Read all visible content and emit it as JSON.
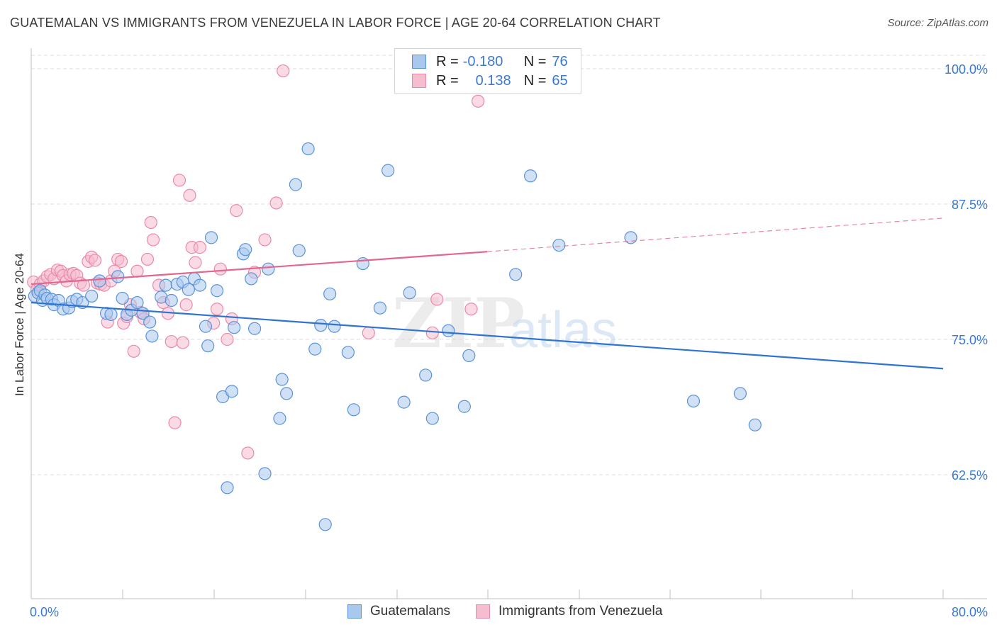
{
  "title": "GUATEMALAN VS IMMIGRANTS FROM VENEZUELA IN LABOR FORCE | AGE 20-64 CORRELATION CHART",
  "source": "Source: ZipAtlas.com",
  "legend": {
    "r_label": "R =",
    "n_label": "N =",
    "rows": [
      {
        "r": "-0.180",
        "n": "76"
      },
      {
        "r": "0.138",
        "n": "65"
      }
    ]
  },
  "watermark": {
    "zip": "ZIP",
    "atlas": "atlas"
  },
  "colors": {
    "blue_fill": "#aac8ee",
    "blue_stroke": "#5b93d8",
    "blue_line": "#2e74d0",
    "pink_fill": "#f6bccf",
    "pink_stroke": "#e98aaa",
    "pink_line": "#e2668f",
    "axis_label": "#3a78d6",
    "grid": "#dcdcdc"
  },
  "chart_data": {
    "type": "scatter",
    "xlabel": "",
    "ylabel": "In Labor Force | Age 20-64",
    "xlim": [
      0,
      80
    ],
    "ylim": [
      50.5,
      102
    ],
    "x_tick_labels": [
      "0.0%",
      "80.0%"
    ],
    "y_ticks": [
      {
        "value": 100.0,
        "label": "100.0%"
      },
      {
        "value": 87.5,
        "label": "87.5%"
      },
      {
        "value": 75.0,
        "label": "75.0%"
      },
      {
        "value": 62.5,
        "label": "62.5%"
      }
    ],
    "grid": true,
    "legend_position": "top-center",
    "series": [
      {
        "name": "Guatemalans",
        "color": "#5b93d8",
        "points": [
          [
            0.3,
            79.0
          ],
          [
            0.6,
            79.3
          ],
          [
            0.8,
            79.5
          ],
          [
            1.0,
            78.6
          ],
          [
            1.2,
            79.1
          ],
          [
            1.4,
            78.8
          ],
          [
            1.8,
            78.7
          ],
          [
            2.0,
            78.2
          ],
          [
            2.4,
            78.6
          ],
          [
            2.8,
            77.8
          ],
          [
            3.3,
            77.9
          ],
          [
            3.6,
            78.5
          ],
          [
            4.0,
            78.7
          ],
          [
            4.5,
            78.4
          ],
          [
            5.3,
            79.0
          ],
          [
            6.0,
            80.4
          ],
          [
            6.6,
            77.4
          ],
          [
            7.0,
            77.3
          ],
          [
            7.6,
            80.8
          ],
          [
            8.0,
            78.8
          ],
          [
            8.4,
            77.3
          ],
          [
            8.8,
            77.7
          ],
          [
            9.3,
            78.4
          ],
          [
            9.8,
            77.4
          ],
          [
            10.4,
            76.6
          ],
          [
            10.6,
            75.3
          ],
          [
            11.4,
            78.9
          ],
          [
            11.8,
            80.0
          ],
          [
            12.3,
            78.6
          ],
          [
            12.8,
            80.1
          ],
          [
            13.3,
            80.3
          ],
          [
            13.8,
            79.6
          ],
          [
            14.3,
            80.6
          ],
          [
            14.8,
            80.0
          ],
          [
            15.3,
            76.2
          ],
          [
            15.5,
            74.4
          ],
          [
            15.8,
            84.4
          ],
          [
            16.3,
            79.5
          ],
          [
            16.8,
            69.7
          ],
          [
            17.2,
            61.3
          ],
          [
            17.6,
            70.2
          ],
          [
            17.8,
            76.1
          ],
          [
            18.6,
            82.9
          ],
          [
            18.8,
            83.3
          ],
          [
            19.3,
            80.6
          ],
          [
            19.6,
            76.0
          ],
          [
            20.5,
            62.6
          ],
          [
            20.8,
            81.5
          ],
          [
            21.8,
            67.7
          ],
          [
            22.0,
            71.3
          ],
          [
            22.4,
            70.0
          ],
          [
            23.2,
            89.3
          ],
          [
            23.5,
            83.2
          ],
          [
            24.3,
            92.6
          ],
          [
            24.9,
            74.1
          ],
          [
            25.4,
            76.3
          ],
          [
            25.8,
            57.9
          ],
          [
            26.2,
            79.2
          ],
          [
            26.6,
            76.2
          ],
          [
            27.8,
            73.8
          ],
          [
            28.3,
            68.5
          ],
          [
            29.1,
            82.0
          ],
          [
            30.6,
            77.9
          ],
          [
            31.3,
            90.6
          ],
          [
            32.7,
            69.2
          ],
          [
            33.2,
            79.3
          ],
          [
            34.6,
            71.7
          ],
          [
            35.2,
            67.7
          ],
          [
            36.6,
            75.8
          ],
          [
            38.0,
            68.8
          ],
          [
            38.4,
            73.5
          ],
          [
            42.5,
            81.0
          ],
          [
            43.8,
            90.1
          ],
          [
            46.3,
            83.7
          ],
          [
            52.6,
            84.4
          ],
          [
            58.1,
            69.3
          ],
          [
            62.2,
            70.0
          ],
          [
            63.5,
            67.1
          ]
        ],
        "trend": {
          "x": [
            0,
            80
          ],
          "y": [
            78.4,
            72.3
          ]
        }
      },
      {
        "name": "Immigrants from Venezuela",
        "color": "#e98aaa",
        "points": [
          [
            0.2,
            80.3
          ],
          [
            0.5,
            79.6
          ],
          [
            0.8,
            80.1
          ],
          [
            1.1,
            80.4
          ],
          [
            1.4,
            80.8
          ],
          [
            1.7,
            81.0
          ],
          [
            2.0,
            80.6
          ],
          [
            2.3,
            81.4
          ],
          [
            2.6,
            81.3
          ],
          [
            2.8,
            80.9
          ],
          [
            3.1,
            80.4
          ],
          [
            3.4,
            81.0
          ],
          [
            3.7,
            81.1
          ],
          [
            4.0,
            80.9
          ],
          [
            4.3,
            80.2
          ],
          [
            4.6,
            80.0
          ],
          [
            5.0,
            82.2
          ],
          [
            5.3,
            82.6
          ],
          [
            5.6,
            82.3
          ],
          [
            5.8,
            80.2
          ],
          [
            6.1,
            80.1
          ],
          [
            6.4,
            80.0
          ],
          [
            6.7,
            76.6
          ],
          [
            7.0,
            80.4
          ],
          [
            7.3,
            81.3
          ],
          [
            7.6,
            82.4
          ],
          [
            7.9,
            82.2
          ],
          [
            8.1,
            76.5
          ],
          [
            8.4,
            77.1
          ],
          [
            8.7,
            78.2
          ],
          [
            9.0,
            73.9
          ],
          [
            9.3,
            81.3
          ],
          [
            9.6,
            77.5
          ],
          [
            9.9,
            76.9
          ],
          [
            10.2,
            82.4
          ],
          [
            10.5,
            85.8
          ],
          [
            10.7,
            84.2
          ],
          [
            11.2,
            80.0
          ],
          [
            11.6,
            78.4
          ],
          [
            12.0,
            77.4
          ],
          [
            12.3,
            74.8
          ],
          [
            12.6,
            67.3
          ],
          [
            13.0,
            89.7
          ],
          [
            13.3,
            74.7
          ],
          [
            13.6,
            78.2
          ],
          [
            13.9,
            88.3
          ],
          [
            14.1,
            83.5
          ],
          [
            14.4,
            82.1
          ],
          [
            14.8,
            83.5
          ],
          [
            16.0,
            76.5
          ],
          [
            16.3,
            77.8
          ],
          [
            16.6,
            81.5
          ],
          [
            17.2,
            75.0
          ],
          [
            17.6,
            76.9
          ],
          [
            18.0,
            86.9
          ],
          [
            19.0,
            64.5
          ],
          [
            19.6,
            81.2
          ],
          [
            20.5,
            84.2
          ],
          [
            21.5,
            87.6
          ],
          [
            22.1,
            99.8
          ],
          [
            29.6,
            75.6
          ],
          [
            35.2,
            75.6
          ],
          [
            35.6,
            78.7
          ],
          [
            38.6,
            77.8
          ],
          [
            39.2,
            97.0
          ]
        ],
        "trend": {
          "x": [
            0,
            40
          ],
          "y": [
            80.1,
            83.1
          ]
        },
        "trend_dashed_to": {
          "x": 80,
          "y": 86.2
        }
      }
    ]
  }
}
